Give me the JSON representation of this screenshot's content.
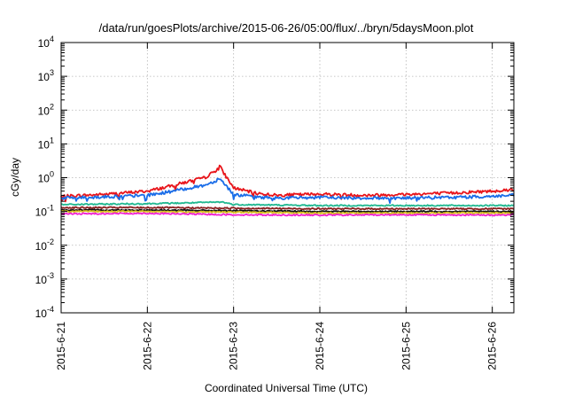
{
  "chart_data": {
    "type": "line",
    "title": "/data/run/goesPlots/archive/2015-06-26/05:00/flux/../bryn/5daysMoon.plot",
    "xlabel": "Coordinated Universal Time (UTC)",
    "ylabel": "cGy/day",
    "yscale": "log",
    "ylim": [
      0.0001,
      10000
    ],
    "xlim_days": [
      0,
      5.25
    ],
    "grid": true,
    "legend": "none",
    "yticks": [
      {
        "base": "10",
        "exp": "-4"
      },
      {
        "base": "10",
        "exp": "-3"
      },
      {
        "base": "10",
        "exp": "-2"
      },
      {
        "base": "10",
        "exp": "-1"
      },
      {
        "base": "10",
        "exp": "0"
      },
      {
        "base": "10",
        "exp": "1"
      },
      {
        "base": "10",
        "exp": "2"
      },
      {
        "base": "10",
        "exp": "3"
      },
      {
        "base": "10",
        "exp": "4"
      }
    ],
    "xticks": [
      "2015-6-21",
      "2015-6-22",
      "2015-6-23",
      "2015-6-24",
      "2015-6-25",
      "2015-6-26"
    ],
    "series": [
      {
        "color": "#e8151b",
        "x": [
          "2015-6-21",
          "2015-6-21 12:00",
          "2015-6-22",
          "2015-6-22 06:00",
          "2015-6-22 12:00",
          "2015-6-22 16:00",
          "2015-6-22 19:00",
          "2015-6-22 20:00",
          "2015-6-22 21:00",
          "2015-6-23",
          "2015-6-23 06:00",
          "2015-6-23 12:00",
          "2015-6-24",
          "2015-6-24 12:00",
          "2015-6-25",
          "2015-6-25 12:00",
          "2015-6-26",
          "2015-6-26 06:00"
        ],
        "y": [
          0.28,
          0.32,
          0.4,
          0.55,
          0.8,
          1.0,
          1.6,
          2.4,
          1.5,
          0.5,
          0.35,
          0.3,
          0.33,
          0.3,
          0.32,
          0.35,
          0.4,
          0.45
        ]
      },
      {
        "color": "#1a6de8",
        "x": [
          "2015-6-21",
          "2015-6-21 12:00",
          "2015-6-22",
          "2015-6-22 06:00",
          "2015-6-22 12:00",
          "2015-6-22 16:00",
          "2015-6-22 19:00",
          "2015-6-22 20:00",
          "2015-6-22 21:00",
          "2015-6-23",
          "2015-6-23 06:00",
          "2015-6-23 12:00",
          "2015-6-24",
          "2015-6-24 12:00",
          "2015-6-25",
          "2015-6-25 12:00",
          "2015-6-26",
          "2015-6-26 06:00"
        ],
        "y": [
          0.25,
          0.27,
          0.3,
          0.38,
          0.5,
          0.6,
          0.8,
          1.0,
          0.75,
          0.32,
          0.27,
          0.25,
          0.26,
          0.25,
          0.25,
          0.26,
          0.28,
          0.3
        ]
      },
      {
        "color": "#20b890",
        "x": [
          "2015-6-21",
          "2015-6-22",
          "2015-6-22 12:00",
          "2015-6-22 21:00",
          "2015-6-23",
          "2015-6-24",
          "2015-6-25",
          "2015-6-26",
          "2015-6-26 06:00"
        ],
        "y": [
          0.16,
          0.17,
          0.18,
          0.19,
          0.16,
          0.15,
          0.15,
          0.15,
          0.15
        ]
      },
      {
        "color": "#8a2020",
        "x": [
          "2015-6-21",
          "2015-6-22",
          "2015-6-23",
          "2015-6-24",
          "2015-6-25",
          "2015-6-26",
          "2015-6-26 06:00"
        ],
        "y": [
          0.13,
          0.13,
          0.125,
          0.12,
          0.12,
          0.12,
          0.12
        ]
      },
      {
        "color": "#111111",
        "x": [
          "2015-6-21",
          "2015-6-22",
          "2015-6-23",
          "2015-6-24",
          "2015-6-25",
          "2015-6-26",
          "2015-6-26 06:00"
        ],
        "y": [
          0.11,
          0.11,
          0.105,
          0.1,
          0.1,
          0.1,
          0.1
        ]
      },
      {
        "color": "#d8c020",
        "x": [
          "2015-6-21",
          "2015-6-22",
          "2015-6-23",
          "2015-6-24",
          "2015-6-25",
          "2015-6-26",
          "2015-6-26 06:00"
        ],
        "y": [
          0.1,
          0.1,
          0.095,
          0.09,
          0.09,
          0.09,
          0.09
        ]
      },
      {
        "color": "#f020d0",
        "x": [
          "2015-6-21",
          "2015-6-22",
          "2015-6-23",
          "2015-6-24",
          "2015-6-25",
          "2015-6-26",
          "2015-6-26 06:00"
        ],
        "y": [
          0.085,
          0.088,
          0.08,
          0.078,
          0.08,
          0.078,
          0.08
        ]
      }
    ]
  }
}
